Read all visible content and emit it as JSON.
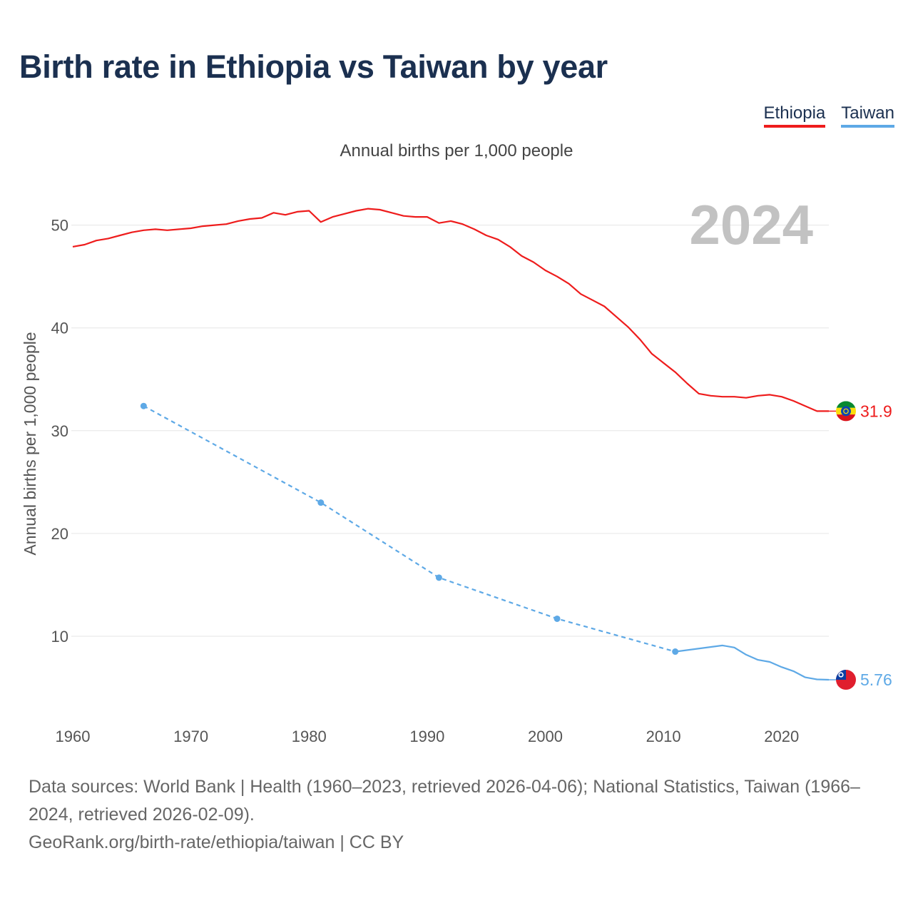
{
  "title": "Birth rate in Ethiopia vs Taiwan by year",
  "subtitle": "Annual births per 1,000 people",
  "legend": {
    "ethiopia": "Ethiopia",
    "taiwan": "Taiwan"
  },
  "footer": {
    "line1": "Data sources: World Bank | Health (1960–2023, retrieved 2026-04-06); National Statistics, Taiwan (1966–",
    "line2": "2024, retrieved 2026-02-09).",
    "line3": "GeoRank.org/birth-rate/ethiopia/taiwan | CC BY"
  },
  "colors": {
    "ethiopia": "#ee1c1c",
    "taiwan": "#5ea9e6",
    "title": "#1b3050",
    "grid": "#e6e6e6",
    "axis_text": "#555555",
    "watermark": "#c2c2c2"
  },
  "chart_data": {
    "type": "line",
    "title": "Birth rate in Ethiopia vs Taiwan by year",
    "ylabel": "Annual births per 1,000 people",
    "xlabel": "",
    "xlim": [
      1960,
      2024
    ],
    "ylim": [
      2.5,
      54
    ],
    "x_ticks": [
      1960,
      1970,
      1980,
      1990,
      2000,
      2010,
      2020
    ],
    "y_ticks": [
      10,
      20,
      30,
      40,
      50
    ],
    "year_label": "2024",
    "grid": true,
    "series": [
      {
        "name": "Ethiopia",
        "end_label": "31.9",
        "end_value": 31.9,
        "x": [
          1960,
          1961,
          1962,
          1963,
          1964,
          1965,
          1966,
          1967,
          1968,
          1969,
          1970,
          1971,
          1972,
          1973,
          1974,
          1975,
          1976,
          1977,
          1978,
          1979,
          1980,
          1981,
          1982,
          1983,
          1984,
          1985,
          1986,
          1987,
          1988,
          1989,
          1990,
          1991,
          1992,
          1993,
          1994,
          1995,
          1996,
          1997,
          1998,
          1999,
          2000,
          2001,
          2002,
          2003,
          2004,
          2005,
          2006,
          2007,
          2008,
          2009,
          2010,
          2011,
          2012,
          2013,
          2014,
          2015,
          2016,
          2017,
          2018,
          2019,
          2020,
          2021,
          2022,
          2023,
          2024
        ],
        "values": [
          47.9,
          48.1,
          48.5,
          48.7,
          49.0,
          49.3,
          49.5,
          49.6,
          49.5,
          49.6,
          49.7,
          49.9,
          50.0,
          50.1,
          50.4,
          50.6,
          50.7,
          51.2,
          51.0,
          51.3,
          51.4,
          50.3,
          50.8,
          51.1,
          51.4,
          51.6,
          51.5,
          51.2,
          50.9,
          50.8,
          50.8,
          50.2,
          50.4,
          50.1,
          49.6,
          49.0,
          48.6,
          47.9,
          47.0,
          46.4,
          45.6,
          45.0,
          44.3,
          43.3,
          42.7,
          42.1,
          41.1,
          40.1,
          38.9,
          37.5,
          36.6,
          35.7,
          34.6,
          33.6,
          33.4,
          33.3,
          33.3,
          33.2,
          33.4,
          33.5,
          33.3,
          32.9,
          32.4,
          31.9,
          31.9
        ],
        "markers_x": []
      },
      {
        "name": "Taiwan",
        "end_label": "5.76",
        "end_value": 5.76,
        "x": [
          1966,
          1981,
          1991,
          2001,
          2011,
          2015,
          2016,
          2017,
          2018,
          2019,
          2020,
          2021,
          2022,
          2023,
          2024
        ],
        "values": [
          32.4,
          23.0,
          15.7,
          11.7,
          8.5,
          9.1,
          8.9,
          8.2,
          7.7,
          7.5,
          7.0,
          6.6,
          6.0,
          5.8,
          5.76
        ],
        "markers_x": [
          1966,
          1981,
          1991,
          2001,
          2011
        ],
        "dashed_until": 2011
      }
    ]
  }
}
